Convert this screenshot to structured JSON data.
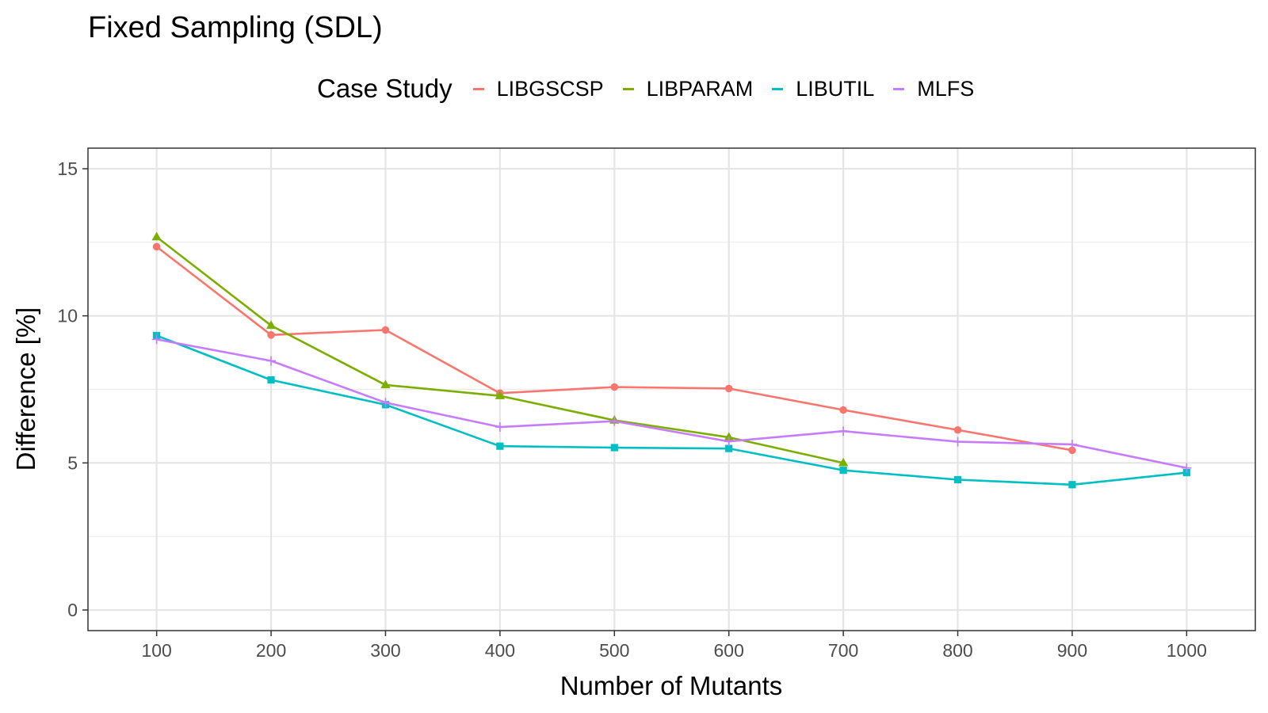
{
  "chart_data": {
    "type": "line",
    "title": "Fixed Sampling (SDL)",
    "xlabel": "Number of Mutants",
    "ylabel": "Difference [%]",
    "legend_title": "Case Study",
    "legend_position": "top",
    "grid": true,
    "xlim": [
      40,
      1060
    ],
    "ylim": [
      -0.7,
      15.7
    ],
    "x_ticks": [
      100,
      200,
      300,
      400,
      500,
      600,
      700,
      800,
      900,
      1000
    ],
    "x_tick_labels": [
      "100",
      "200",
      "300",
      "400",
      "500",
      "600",
      "700",
      "800",
      "900",
      "1000"
    ],
    "y_ticks": [
      0,
      5,
      10,
      15
    ],
    "y_tick_labels": [
      "0",
      "5",
      "10",
      "15"
    ],
    "y_minor_ticks": [
      2.5,
      7.5,
      12.5
    ],
    "series": [
      {
        "name": "LIBGSCSP",
        "color": "#F8766D",
        "marker": "circle",
        "x": [
          100,
          200,
          300,
          400,
          500,
          600,
          700,
          800,
          900
        ],
        "y": [
          12.35,
          9.35,
          9.52,
          7.37,
          7.58,
          7.53,
          6.8,
          6.12,
          5.43
        ]
      },
      {
        "name": "LIBPARAM",
        "color": "#7CAE00",
        "marker": "triangle",
        "x": [
          100,
          200,
          300,
          400,
          500,
          600,
          700
        ],
        "y": [
          12.68,
          9.67,
          7.65,
          7.28,
          6.45,
          5.87,
          5.0
        ]
      },
      {
        "name": "LIBUTIL",
        "color": "#00BFC4",
        "marker": "square",
        "x": [
          100,
          200,
          300,
          400,
          500,
          600,
          700,
          800,
          900,
          1000
        ],
        "y": [
          9.33,
          7.82,
          6.98,
          5.57,
          5.52,
          5.49,
          4.75,
          4.43,
          4.26,
          4.67
        ]
      },
      {
        "name": "MLFS",
        "color": "#C77CFF",
        "marker": "plus",
        "x": [
          100,
          200,
          300,
          400,
          500,
          600,
          700,
          800,
          900,
          1000
        ],
        "y": [
          9.2,
          8.47,
          7.05,
          6.22,
          6.42,
          5.73,
          6.08,
          5.72,
          5.63,
          4.83
        ]
      }
    ]
  }
}
